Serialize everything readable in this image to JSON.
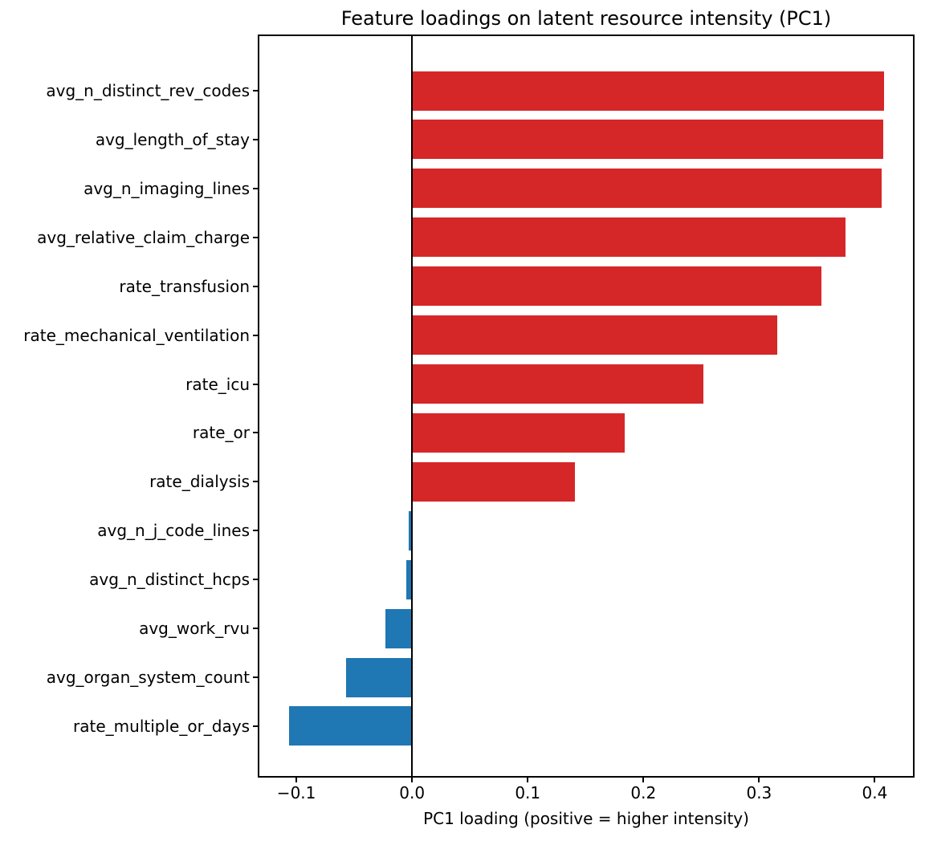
{
  "chart_data": {
    "type": "bar",
    "orientation": "horizontal",
    "title": "Feature loadings on latent resource intensity (PC1)",
    "xlabel": "PC1 loading (positive = higher intensity)",
    "ylabel": "",
    "categories": [
      "avg_n_distinct_rev_codes",
      "avg_length_of_stay",
      "avg_n_imaging_lines",
      "avg_relative_claim_charge",
      "rate_transfusion",
      "rate_mechanical_ventilation",
      "rate_icu",
      "rate_or",
      "rate_dialysis",
      "avg_n_j_code_lines",
      "avg_n_distinct_hcps",
      "avg_work_rvu",
      "avg_organ_system_count",
      "rate_multiple_or_days"
    ],
    "values": [
      0.408,
      0.407,
      0.406,
      0.375,
      0.354,
      0.316,
      0.252,
      0.184,
      0.141,
      -0.003,
      -0.005,
      -0.023,
      -0.057,
      -0.106
    ],
    "xlim": [
      -0.132,
      0.433
    ],
    "x_ticks": [
      -0.1,
      0.0,
      0.1,
      0.2,
      0.3,
      0.4
    ],
    "x_tick_labels": [
      "−0.1",
      "0.0",
      "0.1",
      "0.2",
      "0.3",
      "0.4"
    ],
    "positive_color": "#d62728",
    "negative_color": "#1f77b4",
    "zero_line_color": "#000000",
    "grid": false,
    "legend": null,
    "zero_line": true
  }
}
